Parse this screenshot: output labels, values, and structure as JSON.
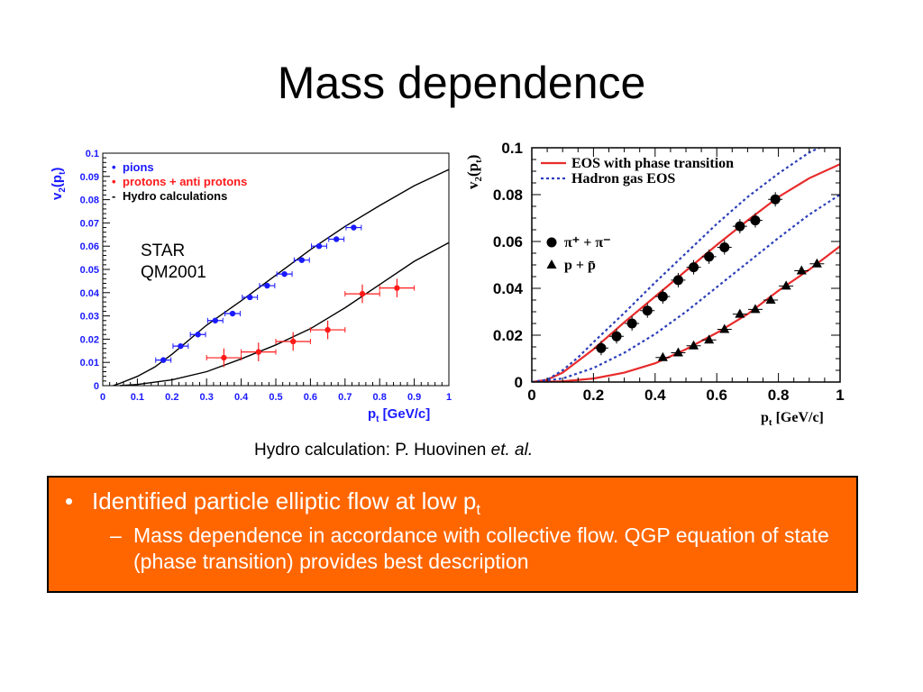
{
  "title": "Mass dependence",
  "caption": {
    "text": "Hydro calculation: P. Huovinen ",
    "italic": "et. al."
  },
  "bullets": {
    "main": {
      "marker": "•",
      "text": "Identified particle elliptic flow at low p",
      "sub": "t"
    },
    "sub": {
      "marker": "–",
      "text": "Mass dependence in accordance with collective flow. QGP equation of state (phase transition) provides best description"
    }
  },
  "colors": {
    "blue": "#1a1aff",
    "red": "#ff1a1a",
    "orange": "#ff6600",
    "dotted": "#2c3fb8",
    "eos": "#e82b2b"
  },
  "chart_data": [
    {
      "type": "scatter",
      "xlabel": "p",
      "xlabel_sub": "t",
      "xunit": " [GeV/c]",
      "ylabel": "v",
      "ylabel_sub1": "2",
      "ylabel_mid": "(p",
      "ylabel_sub2": "t",
      "ylabel_end": ")",
      "xlim": [
        0,
        1
      ],
      "ylim": [
        0,
        0.1
      ],
      "xticks": [
        "0",
        "0.1",
        "0.2",
        "0.3",
        "0.4",
        "0.5",
        "0.6",
        "0.7",
        "0.8",
        "0.9",
        "1"
      ],
      "yticks": [
        "0",
        "0.01",
        "0.02",
        "0.03",
        "0.04",
        "0.05",
        "0.06",
        "0.07",
        "0.08",
        "0.09",
        "0.1"
      ],
      "legend": [
        {
          "marker": "•",
          "label": "pions",
          "color": "#1a1aff"
        },
        {
          "marker": "•",
          "label": "protons + anti protons",
          "color": "#ff1a1a"
        },
        {
          "marker": "-",
          "label": "Hydro calculations",
          "color": "#000000"
        }
      ],
      "annotation": [
        "STAR",
        "QM2001"
      ],
      "series": [
        {
          "name": "pions",
          "color": "#1a1aff",
          "points": [
            [
              0.175,
              0.011
            ],
            [
              0.225,
              0.017
            ],
            [
              0.275,
              0.022
            ],
            [
              0.325,
              0.028
            ],
            [
              0.375,
              0.031
            ],
            [
              0.425,
              0.038
            ],
            [
              0.475,
              0.043
            ],
            [
              0.525,
              0.048
            ],
            [
              0.575,
              0.054
            ],
            [
              0.625,
              0.06
            ],
            [
              0.675,
              0.063
            ],
            [
              0.725,
              0.068
            ]
          ],
          "xerr": 0.022
        },
        {
          "name": "protons + anti protons",
          "color": "#ff1a1a",
          "points": [
            [
              0.35,
              0.012
            ],
            [
              0.45,
              0.0145
            ],
            [
              0.55,
              0.019
            ],
            [
              0.65,
              0.024
            ],
            [
              0.75,
              0.0395
            ],
            [
              0.85,
              0.042
            ]
          ],
          "xerr": 0.05,
          "yerr": 0.004
        }
      ],
      "curves": [
        {
          "name": "pion hydro",
          "points": [
            [
              0.03,
              0
            ],
            [
              0.05,
              0.001
            ],
            [
              0.1,
              0.004
            ],
            [
              0.15,
              0.008
            ],
            [
              0.2,
              0.0135
            ],
            [
              0.3,
              0.026
            ],
            [
              0.4,
              0.0365
            ],
            [
              0.5,
              0.0475
            ],
            [
              0.6,
              0.0585
            ],
            [
              0.7,
              0.0685
            ],
            [
              0.8,
              0.0775
            ],
            [
              0.9,
              0.086
            ],
            [
              1.0,
              0.093
            ]
          ]
        },
        {
          "name": "proton hydro",
          "points": [
            [
              0.05,
              0
            ],
            [
              0.1,
              0.0005
            ],
            [
              0.2,
              0.0025
            ],
            [
              0.3,
              0.006
            ],
            [
              0.4,
              0.0115
            ],
            [
              0.5,
              0.0175
            ],
            [
              0.6,
              0.0245
            ],
            [
              0.7,
              0.0335
            ],
            [
              0.8,
              0.0435
            ],
            [
              0.9,
              0.0535
            ],
            [
              1.0,
              0.0615
            ]
          ]
        }
      ]
    },
    {
      "type": "scatter",
      "xlabel": "p",
      "xlabel_sub": "t",
      "xunit": " [GeV/c]",
      "ylabel": "v",
      "ylabel_sub1": "2",
      "ylabel_mid": "(p",
      "ylabel_sub2": "t",
      "ylabel_end": ")",
      "xlim": [
        0,
        1
      ],
      "ylim": [
        0,
        0.1
      ],
      "xticks": [
        [
          "0",
          0
        ],
        [
          "0.2",
          0.2
        ],
        [
          "0.4",
          0.4
        ],
        [
          "0.6",
          0.6
        ],
        [
          "0.8",
          0.8
        ],
        [
          "1",
          1
        ]
      ],
      "yticks": [
        [
          "0",
          0
        ],
        [
          "0.02",
          0.02
        ],
        [
          "0.04",
          0.04
        ],
        [
          "0.06",
          0.06
        ],
        [
          "0.08",
          0.08
        ],
        [
          "0.1",
          0.1
        ]
      ],
      "legend_lines": [
        {
          "label": "EOS with phase transition",
          "style": "solid",
          "color": "#e82b2b"
        },
        {
          "label": "Hadron gas EOS",
          "style": "dotted",
          "color": "#2c3fb8"
        }
      ],
      "legend_markers": [
        {
          "marker": "circle",
          "label": "π⁺ + π⁻"
        },
        {
          "marker": "triangle",
          "label": "p + p̄"
        }
      ],
      "series": [
        {
          "name": "π⁺ + π⁻",
          "marker": "circle",
          "points": [
            [
              0.225,
              0.0145
            ],
            [
              0.275,
              0.0195
            ],
            [
              0.325,
              0.025
            ],
            [
              0.375,
              0.0305
            ],
            [
              0.425,
              0.0365
            ],
            [
              0.475,
              0.0435
            ],
            [
              0.525,
              0.049
            ],
            [
              0.575,
              0.0535
            ],
            [
              0.625,
              0.0575
            ],
            [
              0.675,
              0.0665
            ],
            [
              0.725,
              0.069
            ],
            [
              0.79,
              0.078
            ]
          ]
        },
        {
          "name": "p + p̄",
          "marker": "triangle",
          "points": [
            [
              0.425,
              0.0105
            ],
            [
              0.475,
              0.0125
            ],
            [
              0.525,
              0.0155
            ],
            [
              0.575,
              0.018
            ],
            [
              0.625,
              0.0225
            ],
            [
              0.675,
              0.029
            ],
            [
              0.725,
              0.031
            ],
            [
              0.775,
              0.035
            ],
            [
              0.825,
              0.041
            ],
            [
              0.875,
              0.0475
            ],
            [
              0.925,
              0.0505
            ]
          ]
        }
      ],
      "curves": [
        {
          "name": "pion EOS phase transition",
          "style": "solid",
          "color": "#e82b2b",
          "points": [
            [
              0,
              0
            ],
            [
              0.05,
              0.001
            ],
            [
              0.1,
              0.004
            ],
            [
              0.15,
              0.009
            ],
            [
              0.2,
              0.014
            ],
            [
              0.3,
              0.0255
            ],
            [
              0.4,
              0.0365
            ],
            [
              0.5,
              0.0475
            ],
            [
              0.6,
              0.0585
            ],
            [
              0.7,
              0.069
            ],
            [
              0.8,
              0.079
            ],
            [
              0.9,
              0.087
            ],
            [
              1.0,
              0.093
            ]
          ]
        },
        {
          "name": "proton EOS phase transition",
          "style": "solid",
          "color": "#e82b2b",
          "points": [
            [
              0,
              0
            ],
            [
              0.1,
              0.0003
            ],
            [
              0.2,
              0.0015
            ],
            [
              0.3,
              0.004
            ],
            [
              0.4,
              0.008
            ],
            [
              0.5,
              0.014
            ],
            [
              0.6,
              0.021
            ],
            [
              0.7,
              0.029
            ],
            [
              0.8,
              0.039
            ],
            [
              0.9,
              0.048
            ],
            [
              1.0,
              0.058
            ]
          ]
        },
        {
          "name": "pion hadron gas",
          "style": "dotted",
          "color": "#2c3fb8",
          "points": [
            [
              0,
              0
            ],
            [
              0.05,
              0.001
            ],
            [
              0.1,
              0.005
            ],
            [
              0.15,
              0.0105
            ],
            [
              0.2,
              0.017
            ],
            [
              0.3,
              0.0295
            ],
            [
              0.4,
              0.0425
            ],
            [
              0.5,
              0.055
            ],
            [
              0.6,
              0.0675
            ],
            [
              0.7,
              0.079
            ],
            [
              0.8,
              0.089
            ],
            [
              0.9,
              0.098
            ],
            [
              0.95,
              0.101
            ]
          ]
        },
        {
          "name": "proton hadron gas",
          "style": "dotted",
          "color": "#2c3fb8",
          "points": [
            [
              0,
              0
            ],
            [
              0.1,
              0.0015
            ],
            [
              0.2,
              0.006
            ],
            [
              0.3,
              0.0125
            ],
            [
              0.4,
              0.0205
            ],
            [
              0.5,
              0.03
            ],
            [
              0.6,
              0.0405
            ],
            [
              0.7,
              0.051
            ],
            [
              0.8,
              0.0615
            ],
            [
              0.9,
              0.0715
            ],
            [
              1.0,
              0.08
            ]
          ]
        }
      ]
    }
  ]
}
